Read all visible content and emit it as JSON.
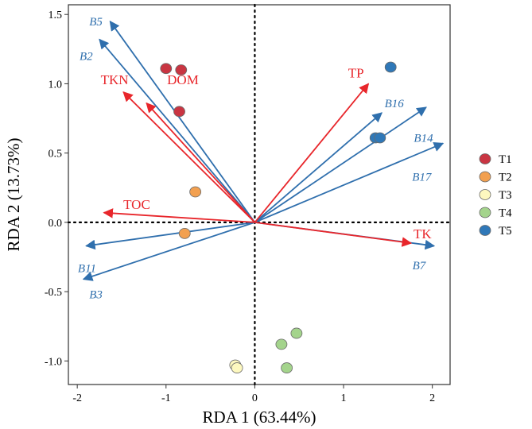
{
  "chart_data": {
    "type": "scatter",
    "subtype": "rda-biplot",
    "xlabel": "RDA 1 (63.44%)",
    "ylabel": "RDA 2 (13.73%)",
    "xlim": [
      -2.1,
      2.2
    ],
    "ylim": [
      -1.17,
      1.57
    ],
    "x_ticks": [
      "-2",
      "-1",
      "0",
      "1",
      "2"
    ],
    "x_tick_values": [
      -2,
      -1,
      0,
      1,
      2
    ],
    "y_ticks": [
      "1.5",
      "1.0",
      "0.5",
      "0.0",
      "-0.5",
      "-1.0"
    ],
    "y_tick_values": [
      1.5,
      1.0,
      0.5,
      0.0,
      -0.5,
      -1.0
    ],
    "env_color": "#e8262b",
    "species_color": "#2f6fad",
    "env_vectors": [
      {
        "name": "TKN",
        "x": -1.48,
        "y": 0.94,
        "lx": -1.58,
        "ly": 1.03
      },
      {
        "name": "DOM",
        "x": -1.22,
        "y": 0.86,
        "lx": -0.81,
        "ly": 1.03
      },
      {
        "name": "TOC",
        "x": -1.7,
        "y": 0.07,
        "lx": -1.33,
        "ly": 0.13
      },
      {
        "name": "TP",
        "x": 1.28,
        "y": 1.0,
        "lx": 1.14,
        "ly": 1.08
      },
      {
        "name": "TK",
        "x": 1.76,
        "y": -0.15,
        "lx": 1.89,
        "ly": -0.08
      }
    ],
    "species_vectors": [
      {
        "name": "B5",
        "x": -1.63,
        "y": 1.45,
        "lx": -1.79,
        "ly": 1.45
      },
      {
        "name": "B2",
        "x": -1.75,
        "y": 1.32,
        "lx": -1.9,
        "ly": 1.2
      },
      {
        "name": "B11",
        "x": -1.9,
        "y": -0.17,
        "lx": -1.89,
        "ly": -0.33
      },
      {
        "name": "B3",
        "x": -1.93,
        "y": -0.41,
        "lx": -1.79,
        "ly": -0.52
      },
      {
        "name": "B16",
        "x": 1.43,
        "y": 0.79,
        "lx": 1.57,
        "ly": 0.86
      },
      {
        "name": "B14",
        "x": 1.93,
        "y": 0.83,
        "lx": 1.9,
        "ly": 0.61
      },
      {
        "name": "B17",
        "x": 2.12,
        "y": 0.57,
        "lx": 1.88,
        "ly": 0.33
      },
      {
        "name": "B7",
        "x": 2.02,
        "y": -0.17,
        "lx": 1.85,
        "ly": -0.31
      }
    ],
    "series": [
      {
        "name": "T1",
        "color": "#c93542",
        "points": [
          [
            -1.0,
            1.11
          ],
          [
            -0.83,
            1.1
          ],
          [
            -0.85,
            0.8
          ]
        ]
      },
      {
        "name": "T2",
        "color": "#f2a050",
        "points": [
          [
            -0.67,
            0.22
          ],
          [
            -0.79,
            -0.08
          ]
        ]
      },
      {
        "name": "T3",
        "color": "#fdf8bf",
        "points": [
          [
            -0.22,
            -1.03
          ],
          [
            -0.2,
            -1.05
          ]
        ]
      },
      {
        "name": "T4",
        "color": "#a4d48c",
        "points": [
          [
            0.3,
            -0.88
          ],
          [
            0.47,
            -0.8
          ],
          [
            0.36,
            -1.05
          ]
        ]
      },
      {
        "name": "T5",
        "color": "#2f78b8",
        "points": [
          [
            1.53,
            1.12
          ],
          [
            1.36,
            0.61
          ],
          [
            1.41,
            0.61
          ]
        ]
      }
    ],
    "legend_position": "right"
  }
}
